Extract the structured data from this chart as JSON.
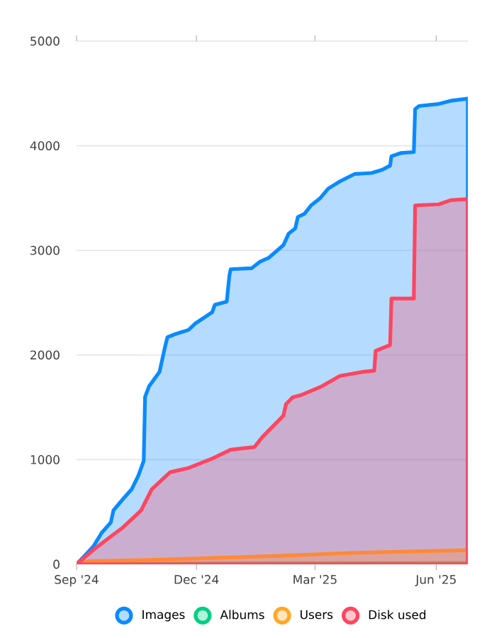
{
  "chart_data": {
    "type": "area",
    "xlim": [
      "2024-09-01",
      "2025-06-25"
    ],
    "ylim": [
      0,
      5000
    ],
    "xticks": [
      {
        "value": "2024-09-01",
        "label": "Sep '24"
      },
      {
        "value": "2024-12-01",
        "label": "Dec '24"
      },
      {
        "value": "2025-03-01",
        "label": "Mar '25"
      },
      {
        "value": "2025-06-01",
        "label": "Jun '25"
      }
    ],
    "yticks": [
      0,
      1000,
      2000,
      3000,
      4000,
      5000
    ],
    "grid": "y",
    "legend": "bottom",
    "marker": "none",
    "series": [
      {
        "name": "Images",
        "color": "#0a8aff",
        "x": [
          "2024-09-01",
          "2024-09-07",
          "2024-09-14",
          "2024-09-20",
          "2024-09-27",
          "2024-09-29",
          "2024-10-06",
          "2024-10-13",
          "2024-10-18",
          "2024-10-22",
          "2024-10-23",
          "2024-10-26",
          "2024-11-03",
          "2024-11-07",
          "2024-11-09",
          "2024-11-15",
          "2024-11-25",
          "2024-11-30",
          "2024-12-13",
          "2024-12-15",
          "2024-12-24",
          "2024-12-26",
          "2024-12-27",
          "2025-01-12",
          "2025-01-18",
          "2025-01-25",
          "2025-02-05",
          "2025-02-09",
          "2025-02-14",
          "2025-02-16",
          "2025-02-21",
          "2025-02-26",
          "2025-03-05",
          "2025-03-11",
          "2025-03-20",
          "2025-03-31",
          "2025-04-13",
          "2025-04-21",
          "2025-04-27",
          "2025-04-28",
          "2025-05-05",
          "2025-05-15",
          "2025-05-16",
          "2025-05-19",
          "2025-06-03",
          "2025-06-12",
          "2025-06-25"
        ],
        "values": [
          0,
          80,
          175,
          300,
          400,
          515,
          620,
          720,
          850,
          990,
          1600,
          1700,
          1840,
          2070,
          2170,
          2200,
          2240,
          2300,
          2410,
          2480,
          2510,
          2760,
          2820,
          2830,
          2890,
          2930,
          3050,
          3160,
          3210,
          3320,
          3350,
          3430,
          3500,
          3590,
          3660,
          3730,
          3740,
          3770,
          3810,
          3900,
          3930,
          3940,
          4350,
          4380,
          4400,
          4430,
          4450
        ]
      },
      {
        "name": "Albums",
        "color": "#00d084",
        "x": [
          "2024-09-01",
          "2024-10-15",
          "2025-01-01",
          "2025-04-01",
          "2025-06-25"
        ],
        "values": [
          0,
          5,
          8,
          10,
          12
        ]
      },
      {
        "name": "Users",
        "color": "#ffa826",
        "x": [
          "2024-09-01",
          "2024-09-10",
          "2024-10-20",
          "2024-12-01",
          "2025-02-01",
          "2025-04-01",
          "2025-06-25"
        ],
        "values": [
          0,
          30,
          40,
          55,
          80,
          110,
          135
        ]
      },
      {
        "name": "Disk used",
        "color": "#ff4560",
        "x": [
          "2024-09-01",
          "2024-09-15",
          "2024-09-29",
          "2024-10-06",
          "2024-10-20",
          "2024-10-28",
          "2024-11-11",
          "2024-11-25",
          "2024-12-13",
          "2024-12-27",
          "2025-01-14",
          "2025-01-20",
          "2025-02-05",
          "2025-02-07",
          "2025-02-12",
          "2025-02-19",
          "2025-03-06",
          "2025-03-20",
          "2025-04-07",
          "2025-04-15",
          "2025-04-16",
          "2025-04-27",
          "2025-04-28",
          "2025-05-15",
          "2025-05-16",
          "2025-06-03",
          "2025-06-12",
          "2025-06-25"
        ],
        "values": [
          0,
          150,
          285,
          350,
          515,
          715,
          880,
          920,
          1010,
          1095,
          1120,
          1215,
          1420,
          1530,
          1595,
          1620,
          1700,
          1800,
          1840,
          1850,
          2040,
          2095,
          2540,
          2540,
          3430,
          3440,
          3480,
          3490
        ]
      }
    ]
  }
}
